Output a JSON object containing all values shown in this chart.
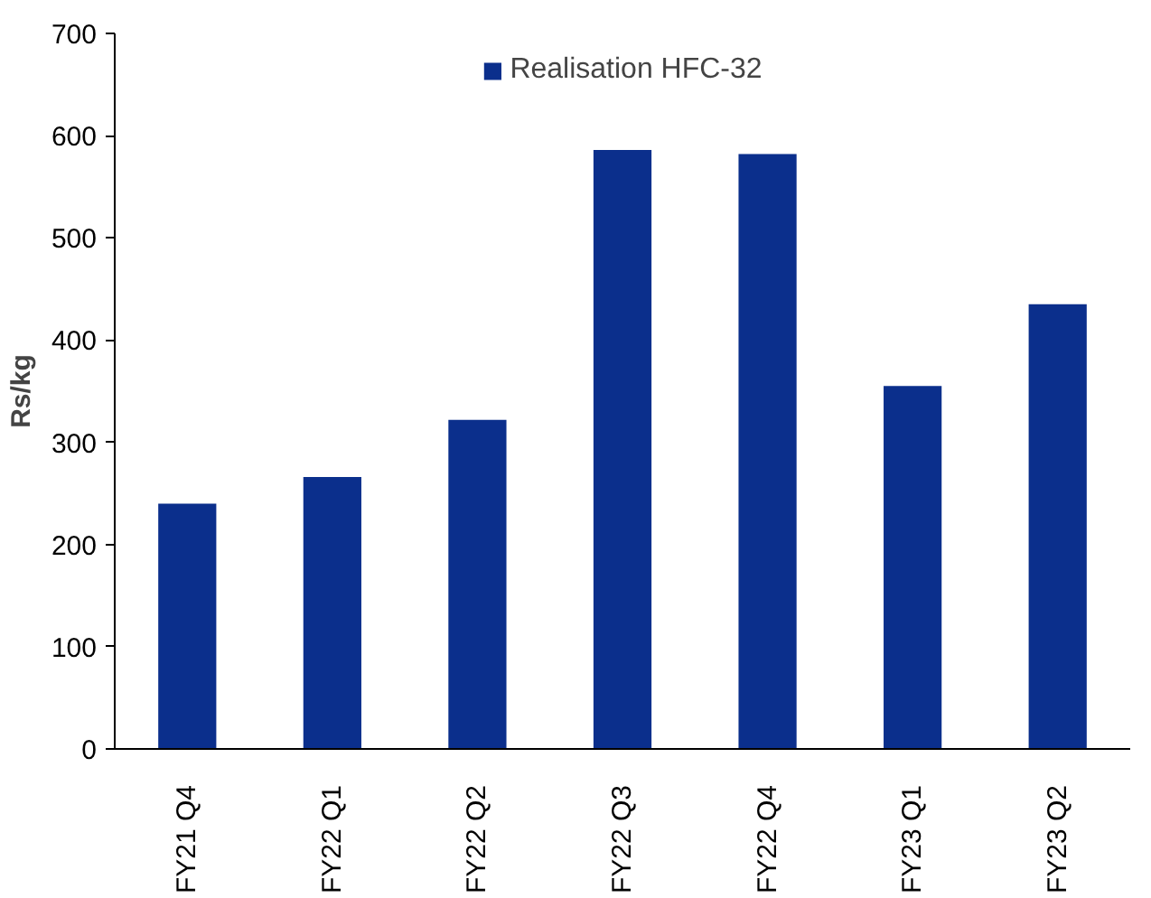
{
  "chart_data": {
    "type": "bar",
    "ylabel": "Rs/kg",
    "categories": [
      "FY21 Q4",
      "FY22 Q1",
      "FY22 Q2",
      "FY22 Q3",
      "FY22 Q4",
      "FY23 Q1",
      "FY23 Q2"
    ],
    "series": [
      {
        "name": "Realisation HFC-32",
        "color": "#0b2f8c",
        "values": [
          240,
          266,
          322,
          586,
          582,
          355,
          435
        ]
      }
    ],
    "ylim": [
      0,
      700
    ],
    "yticks": [
      0,
      100,
      200,
      300,
      400,
      500,
      600,
      700
    ],
    "grid": false,
    "legend": "top"
  }
}
